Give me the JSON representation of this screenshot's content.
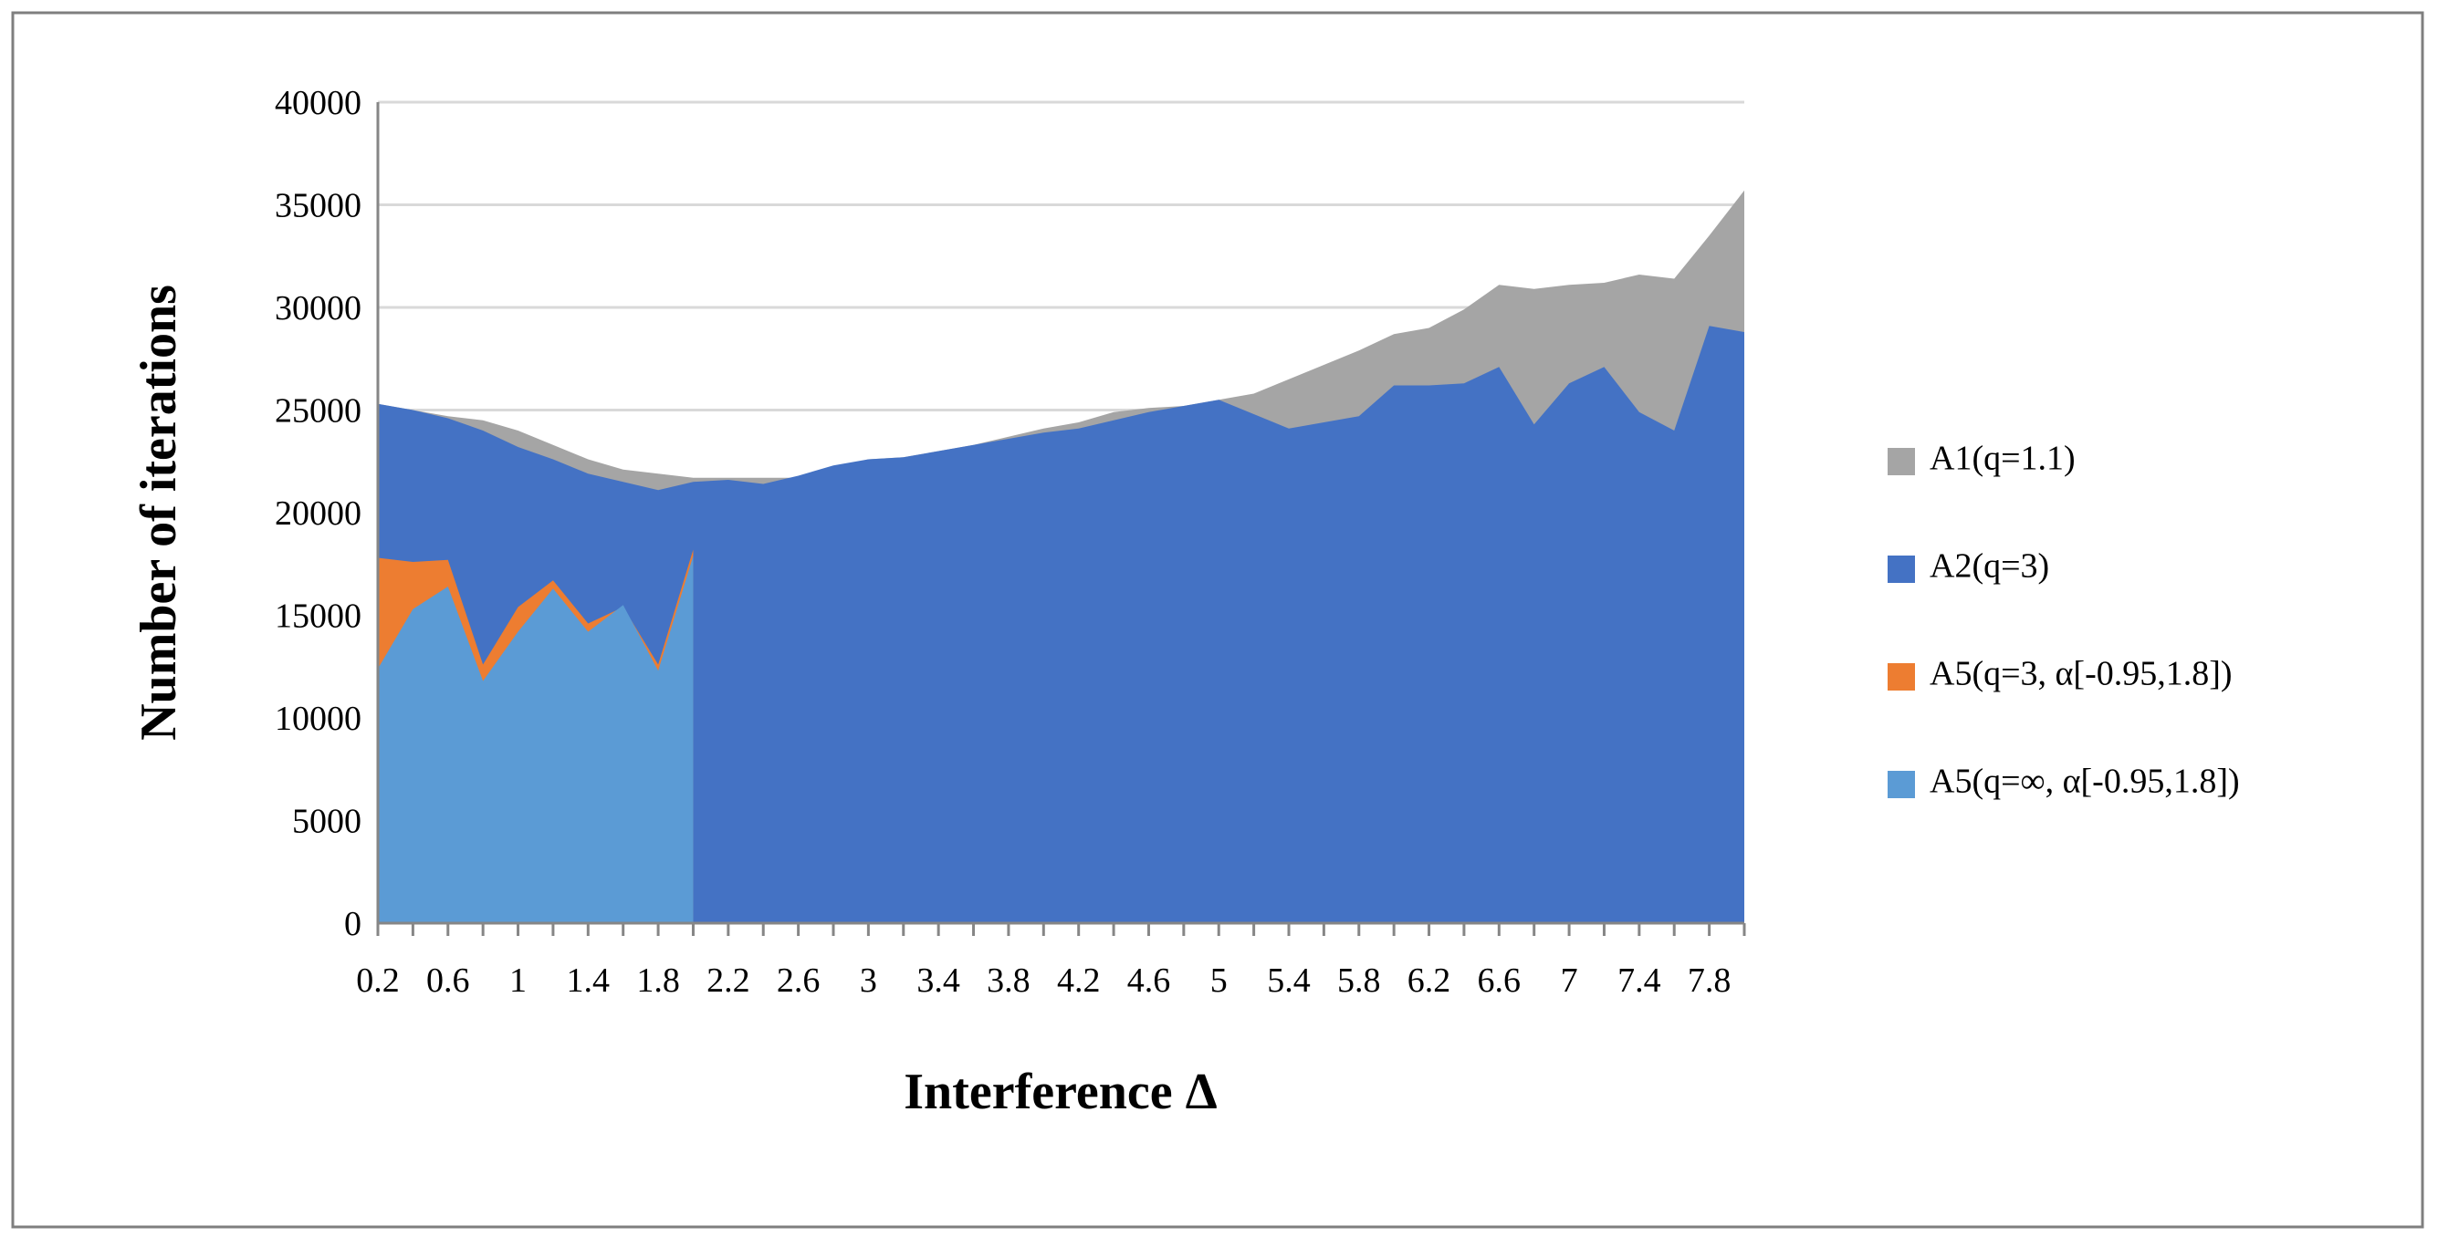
{
  "chart_data": {
    "type": "area",
    "x_label": "Interference Δ",
    "y_label": "Number of iterations",
    "categories": [
      "0.2",
      null,
      "0.6",
      null,
      "1",
      null,
      "1.4",
      null,
      "1.8",
      null,
      "2.2",
      null,
      "2.6",
      null,
      "3",
      null,
      "3.4",
      null,
      "3.8",
      null,
      "4.2",
      null,
      "4.6",
      null,
      "5",
      null,
      "5.4",
      null,
      "5.8",
      null,
      "6.2",
      null,
      "6.6",
      null,
      "7",
      null,
      "7.4",
      null,
      "7.8",
      null
    ],
    "ylim": [
      0,
      40000
    ],
    "yticks": [
      0,
      5000,
      10000,
      15000,
      20000,
      25000,
      30000,
      35000,
      40000
    ],
    "grid": true,
    "legend": "right",
    "series": [
      {
        "name": "A1(q=1.1)",
        "color": "#a5a5a5",
        "values": [
          25300,
          25000,
          24700,
          24500,
          24000,
          23300,
          22600,
          22100,
          21900,
          21700,
          21700,
          21700,
          21700,
          22200,
          22600,
          22700,
          23000,
          23300,
          23700,
          24100,
          24400,
          24900,
          25100,
          25200,
          25500,
          25800,
          26500,
          27200,
          27900,
          28700,
          29000,
          29900,
          31100,
          30900,
          31100,
          31200,
          31600,
          31400,
          33500,
          35700
        ]
      },
      {
        "name": "A2(q=3)",
        "color": "#4472c4",
        "values": [
          25300,
          25000,
          24600,
          24000,
          23200,
          22600,
          21900,
          21500,
          21100,
          21500,
          21600,
          21400,
          21800,
          22300,
          22600,
          22700,
          23000,
          23300,
          23600,
          23900,
          24100,
          24500,
          24900,
          25200,
          25500,
          24800,
          24100,
          24400,
          24700,
          26200,
          26200,
          26300,
          27100,
          24300,
          26300,
          27100,
          24900,
          24000,
          29100,
          28800
        ]
      },
      {
        "name": "A5(q=3, α[-0.95,1.8])",
        "color": "#ed7d31",
        "values": [
          17800,
          17600,
          17700,
          12600,
          15400,
          16700,
          14600,
          15400,
          12600,
          18200,
          null,
          null,
          null,
          null,
          null,
          null,
          null,
          null,
          null,
          null,
          null,
          null,
          null,
          null,
          null,
          null,
          null,
          null,
          null,
          null,
          null,
          null,
          null,
          null,
          null,
          null,
          null,
          null,
          null,
          null
        ]
      },
      {
        "name": "A5(q=∞, α[-0.95,1.8])",
        "color": "#5b9bd5",
        "values": [
          12400,
          15300,
          16400,
          11800,
          14200,
          16300,
          14200,
          15500,
          12300,
          17900,
          null,
          null,
          null,
          null,
          null,
          null,
          null,
          null,
          null,
          null,
          null,
          null,
          null,
          null,
          null,
          null,
          null,
          null,
          null,
          null,
          null,
          null,
          null,
          null,
          null,
          null,
          null,
          null,
          null,
          null
        ]
      }
    ]
  }
}
